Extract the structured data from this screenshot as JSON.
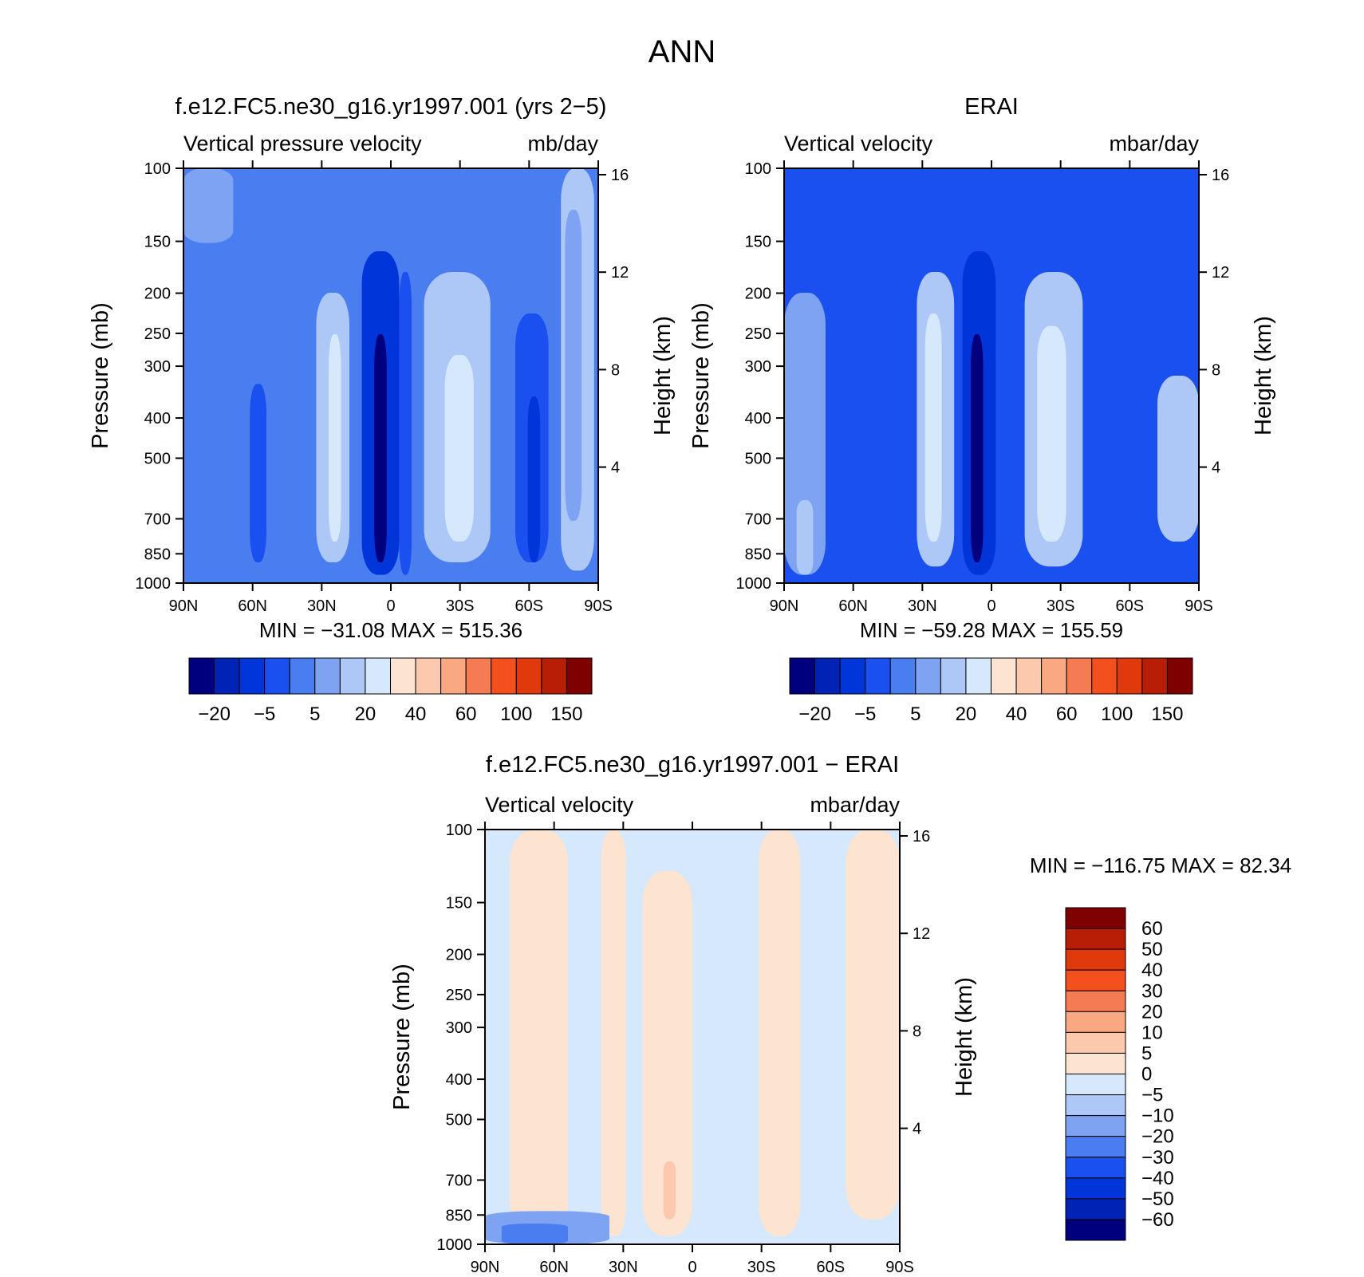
{
  "figure": {
    "title": "ANN"
  },
  "panels": [
    {
      "id": "model",
      "header": "f.e12.FC5.ne30_g16.yr1997.001 (yrs 2−5)",
      "left_label": "Vertical pressure velocity",
      "right_label": "mb/day",
      "ylabel": "Pressure (mb)",
      "y2label": "Height (km)",
      "minmax": "MIN = −31.08   MAX = 515.36"
    },
    {
      "id": "obs",
      "header": "ERAI",
      "left_label": "Vertical velocity",
      "right_label": "mbar/day",
      "ylabel": "Pressure (mb)",
      "y2label": "Height (km)",
      "minmax": "MIN = −59.28   MAX = 155.59"
    },
    {
      "id": "diff",
      "header": "f.e12.FC5.ne30_g16.yr1997.001 − ERAI",
      "left_label": "Vertical velocity",
      "right_label": "mbar/day",
      "ylabel": "Pressure (mb)",
      "y2label": "Height (km)",
      "minmax": "MIN = −116.75   MAX =   82.34"
    }
  ],
  "colorbars": {
    "main": {
      "colors": [
        "#00007f",
        "#0022b5",
        "#0035d9",
        "#1a4ff0",
        "#4a7ef0",
        "#7da3f2",
        "#adc8f7",
        "#d6e8fb",
        "#fde4d0",
        "#fcc9ae",
        "#f9a882",
        "#f57c52",
        "#f3501e",
        "#e0390c",
        "#b81e06",
        "#7f0000"
      ],
      "labels": [
        "−20",
        "−5",
        "5",
        "20",
        "40",
        "60",
        "100",
        "150"
      ]
    },
    "diff": {
      "colors": [
        "#00007f",
        "#0022b5",
        "#0035d9",
        "#1a4ff0",
        "#4a7ef0",
        "#7da3f2",
        "#adc8f7",
        "#d6e8fb",
        "#fde4d0",
        "#fcc9ae",
        "#f9a882",
        "#f57c52",
        "#f3501e",
        "#e0390c",
        "#b81e06",
        "#7f0000"
      ],
      "labels": [
        "60",
        "50",
        "40",
        "30",
        "20",
        "10",
        "5",
        "0",
        "−5",
        "−10",
        "−20",
        "−30",
        "−40",
        "−50",
        "−60"
      ]
    }
  },
  "chart_data": [
    {
      "type": "heatmap",
      "title": "f.e12.FC5.ne30_g16.yr1997.001 (yrs 2−5)",
      "subtitle": "Vertical pressure velocity",
      "units": "mb/day",
      "xlabel": "",
      "ylabel": "Pressure (mb)",
      "y2label": "Height (km)",
      "x_ticks": [
        "90N",
        "60N",
        "30N",
        "0",
        "30S",
        "60S",
        "90S"
      ],
      "y_ticks": [
        100,
        150,
        200,
        250,
        300,
        400,
        500,
        700,
        850,
        1000
      ],
      "y2_ticks": [
        16,
        12,
        8,
        4
      ],
      "y_log": true,
      "min": -31.08,
      "max": 515.36,
      "levels": [
        -20,
        -10,
        -5,
        0,
        5,
        10,
        20,
        30,
        40,
        50,
        60,
        80,
        100,
        120,
        150
      ]
    },
    {
      "type": "heatmap",
      "title": "ERAI",
      "subtitle": "Vertical velocity",
      "units": "mbar/day",
      "xlabel": "",
      "ylabel": "Pressure (mb)",
      "y2label": "Height (km)",
      "x_ticks": [
        "90N",
        "60N",
        "30N",
        "0",
        "30S",
        "60S",
        "90S"
      ],
      "y_ticks": [
        100,
        150,
        200,
        250,
        300,
        400,
        500,
        700,
        850,
        1000
      ],
      "y2_ticks": [
        16,
        12,
        8,
        4
      ],
      "y_log": true,
      "min": -59.28,
      "max": 155.59,
      "levels": [
        -20,
        -10,
        -5,
        0,
        5,
        10,
        20,
        30,
        40,
        50,
        60,
        80,
        100,
        120,
        150
      ]
    },
    {
      "type": "heatmap",
      "title": "f.e12.FC5.ne30_g16.yr1997.001 − ERAI",
      "subtitle": "Vertical velocity",
      "units": "mbar/day",
      "xlabel": "",
      "ylabel": "Pressure (mb)",
      "y2label": "Height (km)",
      "x_ticks": [
        "90N",
        "60N",
        "30N",
        "0",
        "30S",
        "60S",
        "90S"
      ],
      "y_ticks": [
        100,
        150,
        200,
        250,
        300,
        400,
        500,
        700,
        850,
        1000
      ],
      "y2_ticks": [
        16,
        12,
        8,
        4
      ],
      "y_log": true,
      "min": -116.75,
      "max": 82.34,
      "levels": [
        -60,
        -50,
        -40,
        -30,
        -20,
        -10,
        -5,
        0,
        5,
        10,
        20,
        30,
        40,
        50,
        60
      ]
    }
  ]
}
